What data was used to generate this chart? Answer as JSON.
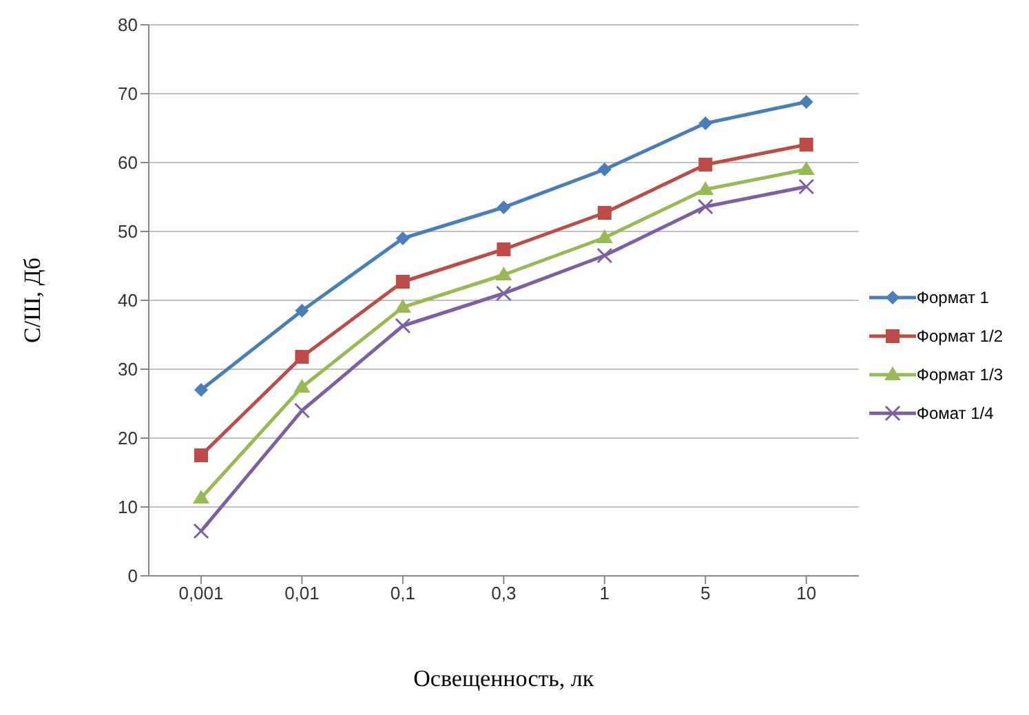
{
  "chart_data": {
    "type": "line",
    "xlabel": "Освещенность, лк",
    "ylabel": "С/Ш, Дб",
    "categories": [
      "0,001",
      "0,01",
      "0,1",
      "0,3",
      "1",
      "5",
      "10"
    ],
    "series": [
      {
        "name": "Формат 1",
        "color": "#4a7ebb",
        "marker": "diamond",
        "values": [
          27,
          38.5,
          49,
          53.5,
          59,
          65.7,
          68.8
        ]
      },
      {
        "name": "Формат 1/2",
        "color": "#be4b48",
        "marker": "square",
        "values": [
          17.5,
          31.8,
          42.7,
          47.4,
          52.7,
          59.7,
          62.6
        ]
      },
      {
        "name": "Формат 1/3",
        "color": "#98b954",
        "marker": "triangle",
        "values": [
          11.3,
          27.4,
          39,
          43.7,
          49.1,
          56.1,
          59
        ]
      },
      {
        "name": "Фомат 1/4",
        "color": "#7d60a0",
        "marker": "cross",
        "values": [
          6.5,
          24,
          36.3,
          41,
          46.5,
          53.6,
          56.5
        ]
      }
    ],
    "ylim": [
      0,
      80
    ],
    "yticks": [
      0,
      10,
      20,
      30,
      40,
      50,
      60,
      70,
      80
    ],
    "grid": "y",
    "legend": "right"
  }
}
